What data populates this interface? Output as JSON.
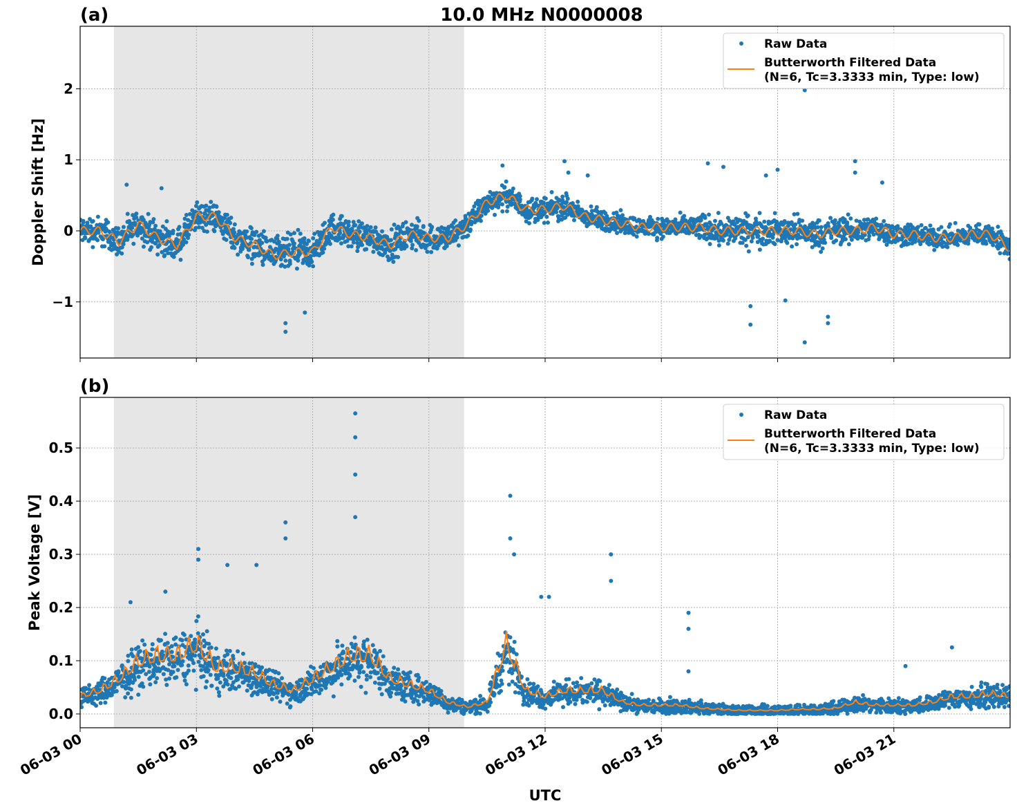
{
  "title": "10.0 MHz N0000008",
  "xlabel": "UTC",
  "x_ticks": [
    "06-03 00",
    "06-03 03",
    "06-03 06",
    "06-03 09",
    "06-03 12",
    "06-03 15",
    "06-03 18",
    "06-03 21"
  ],
  "x_tick_hours": [
    0,
    3,
    6,
    9,
    12,
    15,
    18,
    21
  ],
  "legend": {
    "raw": "Raw Data",
    "filtered_line1": "Butterworth Filtered Data",
    "filtered_line2": "(N=6, Tc=3.3333 min, Type: low)",
    "placement": "upper right"
  },
  "colors": {
    "raw": "#1f77b4",
    "filtered": "#ff7f0e",
    "shade": "#e6e6e6"
  },
  "chart_data": [
    {
      "type": "scatter+line",
      "panel_label": "(a)",
      "ylabel": "Doppler Shift [Hz]",
      "xlim_hours": [
        0,
        24
      ],
      "ylim": [
        -1.79,
        2.88
      ],
      "y_ticks": [
        -1,
        0,
        1,
        2
      ],
      "y_tick_labels": [
        "−1",
        "0",
        "1",
        "2"
      ],
      "grid": true,
      "shaded_interval_hours": [
        0.87,
        9.91
      ],
      "filtered": {
        "x_hours": [
          0,
          0.5,
          1,
          1.5,
          2,
          2.5,
          3,
          3.5,
          4,
          4.5,
          5,
          5.5,
          6,
          6.5,
          7,
          7.5,
          8,
          8.5,
          9,
          9.5,
          10,
          10.5,
          11,
          11.5,
          12,
          12.5,
          13,
          13.5,
          14,
          14.5,
          15,
          15.5,
          16,
          16.5,
          17,
          17.5,
          18,
          18.5,
          19,
          19.5,
          20,
          20.5,
          21,
          21.5,
          22,
          22.5,
          23,
          23.5,
          24
        ],
        "y": [
          0.0,
          0.0,
          -0.15,
          0.1,
          -0.1,
          -0.2,
          0.2,
          0.2,
          -0.1,
          -0.2,
          -0.35,
          -0.3,
          -0.3,
          0.05,
          -0.05,
          -0.1,
          -0.2,
          -0.05,
          -0.1,
          -0.1,
          0.1,
          0.4,
          0.5,
          0.3,
          0.3,
          0.35,
          0.2,
          0.15,
          0.1,
          0.05,
          0.05,
          0.05,
          0.05,
          0.0,
          0.0,
          0.0,
          0.0,
          0.0,
          -0.05,
          0.0,
          0.0,
          0.05,
          -0.05,
          -0.05,
          -0.1,
          -0.1,
          -0.05,
          -0.05,
          -0.25
        ]
      },
      "raw_spread": [
        0.3,
        0.3,
        0.3,
        0.3,
        0.32,
        0.32,
        0.3,
        0.3,
        0.32,
        0.35,
        0.38,
        0.38,
        0.35,
        0.3,
        0.3,
        0.3,
        0.32,
        0.3,
        0.3,
        0.3,
        0.28,
        0.25,
        0.25,
        0.25,
        0.25,
        0.25,
        0.22,
        0.22,
        0.22,
        0.2,
        0.2,
        0.22,
        0.28,
        0.3,
        0.32,
        0.32,
        0.3,
        0.3,
        0.3,
        0.28,
        0.28,
        0.25,
        0.25,
        0.22,
        0.22,
        0.22,
        0.22,
        0.22,
        0.3
      ],
      "raw_outliers": [
        [
          1.2,
          0.65
        ],
        [
          2.1,
          0.6
        ],
        [
          5.3,
          -1.42
        ],
        [
          5.3,
          -1.3
        ],
        [
          5.8,
          -1.15
        ],
        [
          10.9,
          0.92
        ],
        [
          12.5,
          0.98
        ],
        [
          12.6,
          0.82
        ],
        [
          13.1,
          0.78
        ],
        [
          16.2,
          0.95
        ],
        [
          16.6,
          0.9
        ],
        [
          17.3,
          -1.06
        ],
        [
          17.3,
          -1.32
        ],
        [
          17.7,
          0.78
        ],
        [
          18.0,
          0.86
        ],
        [
          18.7,
          1.98
        ],
        [
          18.7,
          -1.57
        ],
        [
          19.3,
          -1.21
        ],
        [
          19.3,
          -1.3
        ],
        [
          20.0,
          0.98
        ],
        [
          20.0,
          0.82
        ],
        [
          20.7,
          0.68
        ],
        [
          18.2,
          -0.98
        ]
      ]
    },
    {
      "type": "scatter+line",
      "panel_label": "(b)",
      "ylabel": "Peak Voltage [V]",
      "xlim_hours": [
        0,
        24
      ],
      "ylim": [
        -0.026,
        0.595
      ],
      "y_ticks": [
        0.0,
        0.1,
        0.2,
        0.3,
        0.4,
        0.5
      ],
      "y_tick_labels": [
        "0.0",
        "0.1",
        "0.2",
        "0.3",
        "0.4",
        "0.5"
      ],
      "grid": true,
      "shaded_interval_hours": [
        0.87,
        9.91
      ],
      "filtered": {
        "x_hours": [
          0,
          0.5,
          1,
          1.5,
          2,
          2.5,
          3,
          3.5,
          4,
          4.5,
          5,
          5.5,
          6,
          6.5,
          7,
          7.5,
          8,
          8.5,
          9,
          9.5,
          10,
          10.5,
          11,
          11.5,
          12,
          12.5,
          13,
          13.5,
          14,
          14.5,
          15,
          15.5,
          16,
          16.5,
          17,
          17.5,
          18,
          18.5,
          19,
          19.5,
          20,
          20.5,
          21,
          21.5,
          22,
          22.5,
          23,
          23.5,
          24
        ],
        "y": [
          0.03,
          0.04,
          0.06,
          0.09,
          0.1,
          0.1,
          0.12,
          0.08,
          0.08,
          0.07,
          0.05,
          0.04,
          0.06,
          0.08,
          0.1,
          0.1,
          0.06,
          0.05,
          0.04,
          0.02,
          0.012,
          0.02,
          0.12,
          0.04,
          0.03,
          0.04,
          0.04,
          0.04,
          0.02,
          0.015,
          0.015,
          0.015,
          0.01,
          0.008,
          0.006,
          0.006,
          0.006,
          0.008,
          0.008,
          0.01,
          0.02,
          0.015,
          0.015,
          0.015,
          0.02,
          0.03,
          0.03,
          0.035,
          0.03
        ]
      },
      "raw_outliers": [
        [
          1.3,
          0.21
        ],
        [
          2.2,
          0.23
        ],
        [
          3.05,
          0.31
        ],
        [
          3.05,
          0.29
        ],
        [
          3.8,
          0.28
        ],
        [
          4.55,
          0.28
        ],
        [
          5.3,
          0.36
        ],
        [
          5.3,
          0.33
        ],
        [
          7.1,
          0.565
        ],
        [
          7.1,
          0.52
        ],
        [
          7.1,
          0.45
        ],
        [
          7.1,
          0.37
        ],
        [
          11.1,
          0.41
        ],
        [
          11.1,
          0.33
        ],
        [
          11.2,
          0.3
        ],
        [
          12.1,
          0.22
        ],
        [
          11.9,
          0.22
        ],
        [
          13.7,
          0.3
        ],
        [
          13.7,
          0.25
        ],
        [
          15.7,
          0.19
        ],
        [
          15.7,
          0.16
        ],
        [
          15.7,
          0.08
        ],
        [
          22.5,
          0.125
        ],
        [
          21.3,
          0.09
        ]
      ]
    }
  ]
}
